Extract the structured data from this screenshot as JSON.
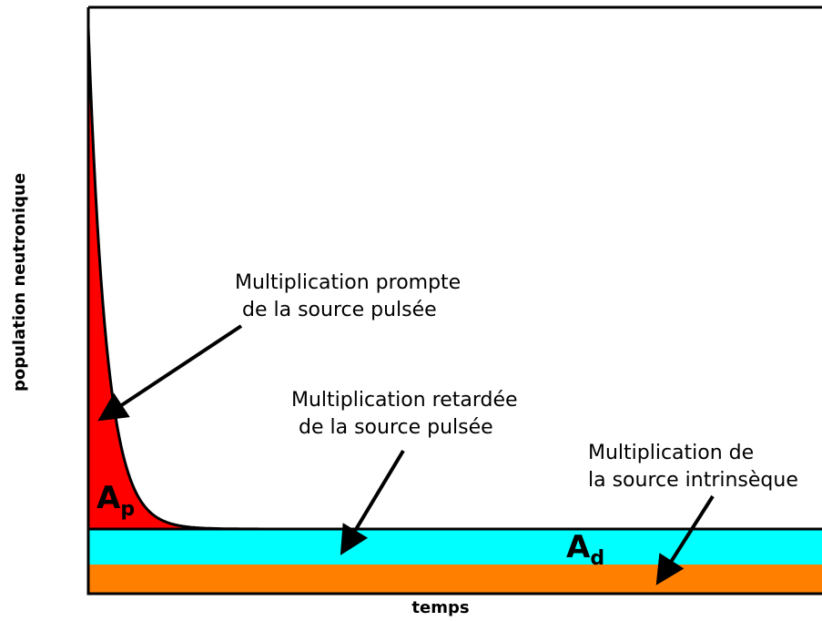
{
  "axes": {
    "y_label": "population neutronique",
    "x_label": "temps"
  },
  "annotations": [
    {
      "lines": [
        "Multiplication prompte",
        "de la source pulsée"
      ]
    },
    {
      "lines": [
        "Multiplication retardée",
        "de la source pulsée"
      ]
    },
    {
      "lines": [
        "Multiplication de",
        "la source intrinsèque"
      ]
    }
  ],
  "areas": [
    {
      "main": "A",
      "sub": "p"
    },
    {
      "main": "A",
      "sub": "d"
    }
  ]
}
